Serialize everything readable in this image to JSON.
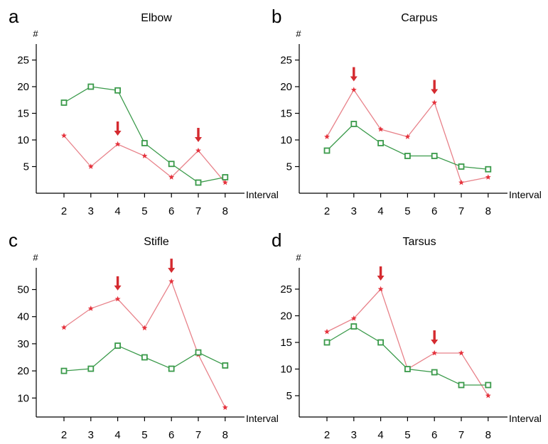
{
  "chart_data": [
    {
      "type": "line",
      "panel_letter": "a",
      "title": "Elbow",
      "ylabel": "#",
      "xlabel": "Interval",
      "x": [
        2,
        3,
        4,
        5,
        6,
        7,
        8
      ],
      "ylim": [
        0,
        28
      ],
      "yticks": [
        5,
        10,
        15,
        20,
        25
      ],
      "series": [
        {
          "color": "#e8828a",
          "marker": "star",
          "values": [
            10.8,
            5,
            9.2,
            7,
            3,
            8,
            2
          ]
        },
        {
          "color": "#3a9a4a",
          "marker": "square",
          "values": [
            17,
            20,
            19.3,
            9.4,
            5.5,
            2,
            3
          ]
        }
      ],
      "arrows_at_x": [
        4,
        7
      ]
    },
    {
      "type": "line",
      "panel_letter": "b",
      "title": "Carpus",
      "ylabel": "#",
      "xlabel": "Interval",
      "x": [
        2,
        3,
        4,
        5,
        6,
        7,
        8
      ],
      "ylim": [
        0,
        28
      ],
      "yticks": [
        5,
        10,
        15,
        20,
        25
      ],
      "series": [
        {
          "color": "#e8828a",
          "marker": "star",
          "values": [
            10.6,
            19.4,
            12,
            10.6,
            17,
            2,
            3
          ]
        },
        {
          "color": "#3a9a4a",
          "marker": "square",
          "values": [
            8,
            13,
            9.4,
            7,
            7,
            5,
            4.5
          ]
        }
      ],
      "arrows_at_x": [
        3,
        6
      ]
    },
    {
      "type": "line",
      "panel_letter": "c",
      "title": "Stifle",
      "ylabel": "#",
      "xlabel": "Interval",
      "x": [
        2,
        3,
        4,
        5,
        6,
        7,
        8
      ],
      "ylim": [
        3,
        58
      ],
      "yticks": [
        10,
        20,
        30,
        40,
        50
      ],
      "series": [
        {
          "color": "#e8828a",
          "marker": "star",
          "values": [
            36,
            43,
            46.5,
            35.8,
            53,
            26,
            6.5
          ]
        },
        {
          "color": "#3a9a4a",
          "marker": "square",
          "values": [
            20,
            20.8,
            29.3,
            25,
            20.8,
            26.8,
            22
          ]
        }
      ],
      "arrows_at_x": [
        4,
        6
      ]
    },
    {
      "type": "line",
      "panel_letter": "d",
      "title": "Tarsus",
      "ylabel": "#",
      "xlabel": "Interval",
      "x": [
        2,
        3,
        4,
        5,
        6,
        7,
        8
      ],
      "ylim": [
        1,
        29
      ],
      "yticks": [
        5,
        10,
        15,
        20,
        25
      ],
      "series": [
        {
          "color": "#e8828a",
          "marker": "star",
          "values": [
            17,
            19.5,
            25,
            10,
            13,
            13,
            5
          ]
        },
        {
          "color": "#3a9a4a",
          "marker": "square",
          "values": [
            15,
            18,
            15,
            10,
            9.4,
            7,
            7
          ]
        }
      ],
      "arrows_at_x": [
        4,
        6
      ]
    }
  ]
}
